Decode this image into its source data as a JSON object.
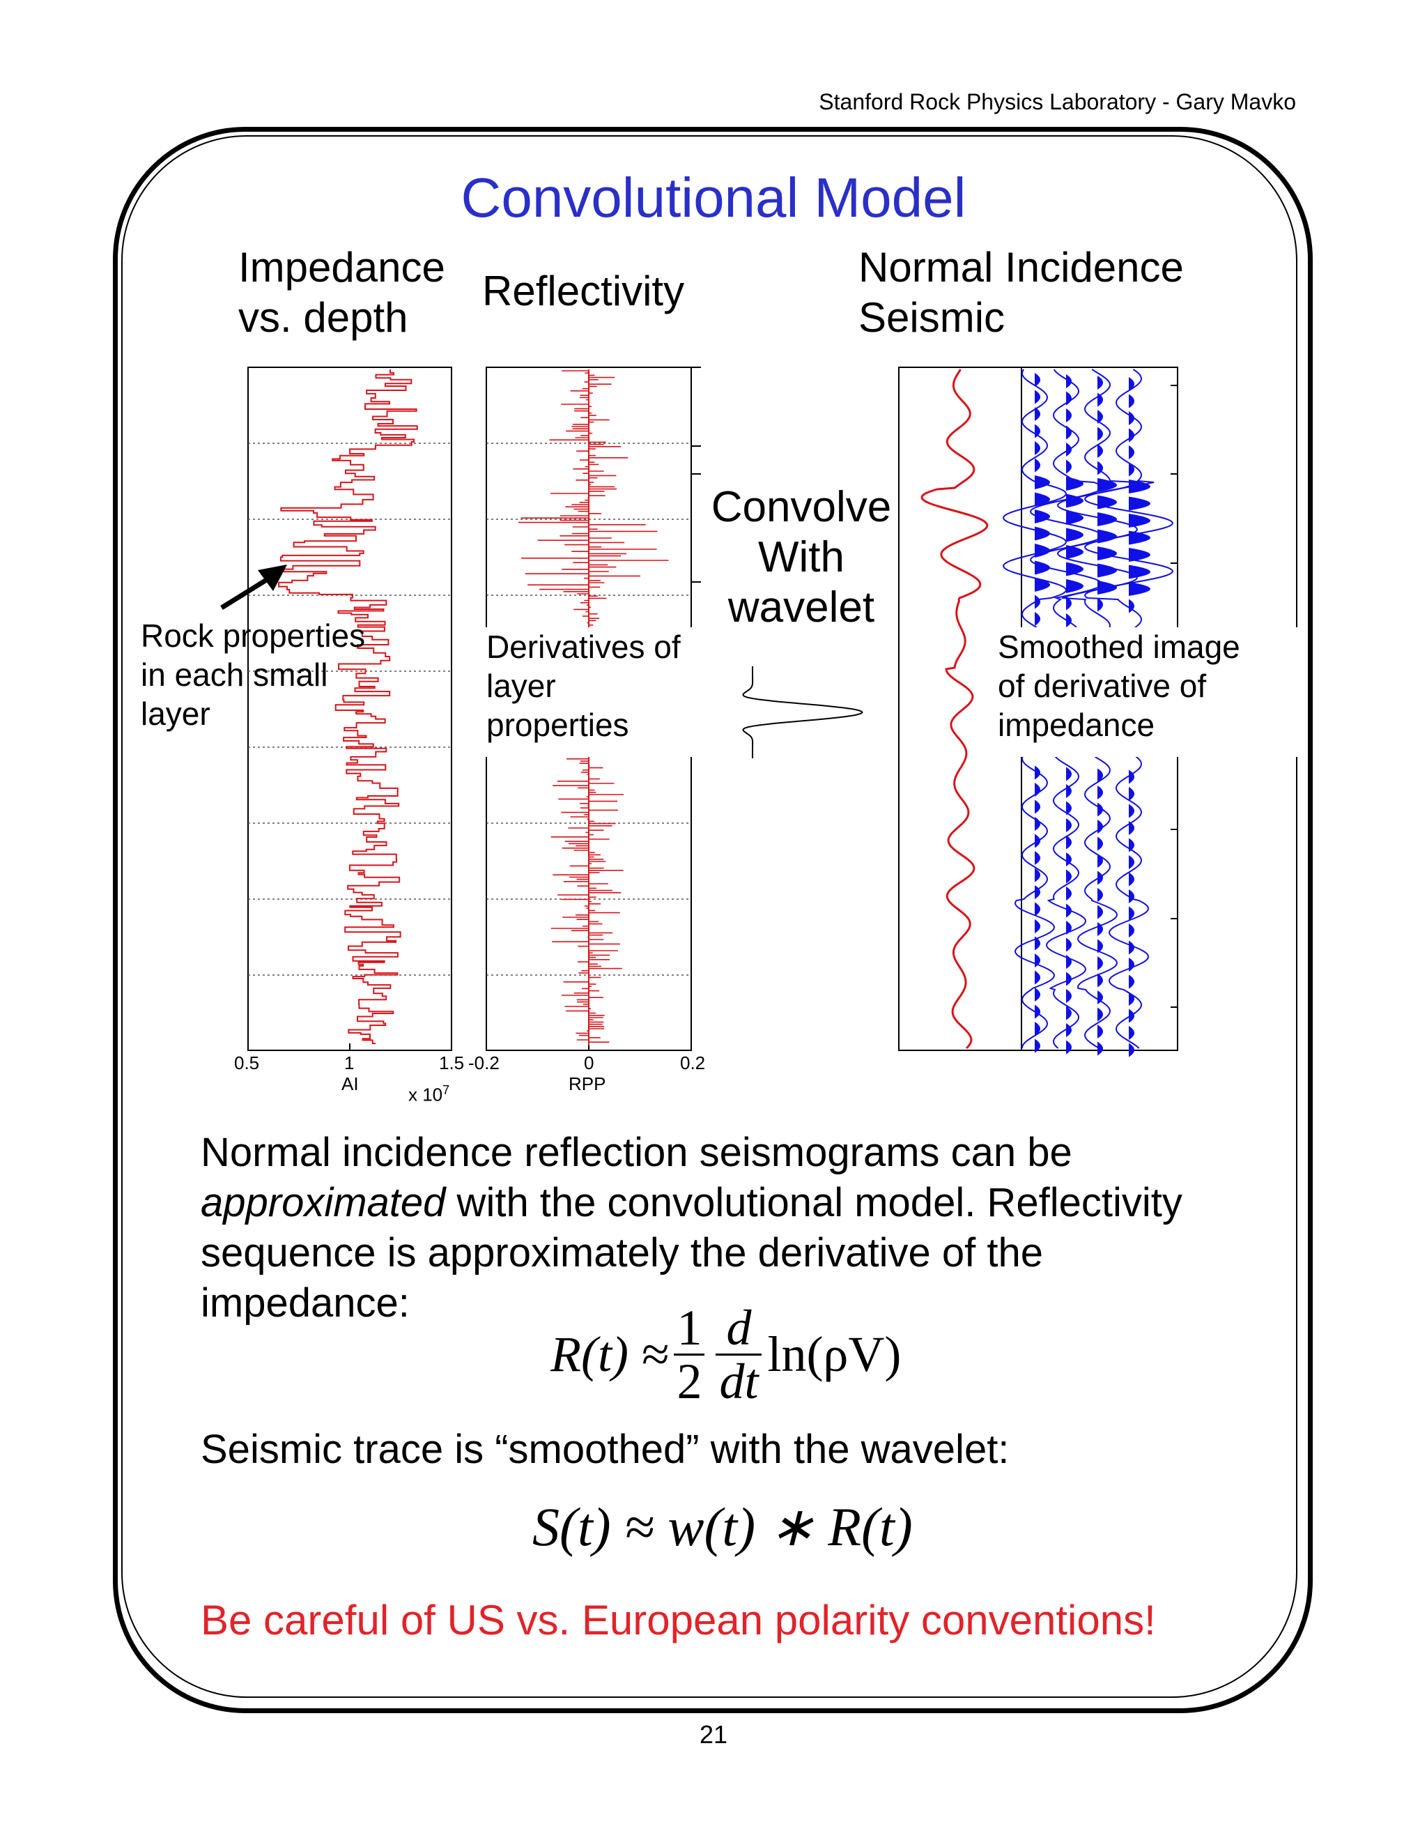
{
  "header": {
    "text": "Stanford Rock Physics Laboratory -  Gary Mavko"
  },
  "title": "Convolutional Model",
  "panels": {
    "impedance": {
      "heading_line1": "Impedance",
      "heading_line2": "vs. depth",
      "xticks": [
        "0.5",
        "1",
        "1.5"
      ],
      "xlabel": "AI",
      "multiplier": "x 10",
      "multiplier_exp": "7"
    },
    "reflectivity": {
      "heading": "Reflectivity",
      "xticks": [
        "-0.2",
        "0",
        "0.2"
      ],
      "xlabel": "RPP"
    },
    "seismic": {
      "heading_line1": "Normal Incidence",
      "heading_line2": "Seismic"
    }
  },
  "annotations": {
    "rock_properties": [
      "Rock properties",
      "in each small",
      "layer"
    ],
    "derivatives": [
      "Derivatives of",
      "layer",
      "properties"
    ],
    "convolve": [
      "Convolve",
      "With",
      "wavelet"
    ],
    "smoothed": [
      "Smoothed image",
      "of derivative of",
      "impedance"
    ]
  },
  "body": {
    "line1": "Normal incidence reflection seismograms can be",
    "line2_italic": "approximated",
    "line2_rest": " with the convolutional model.  Reflectivity",
    "line3": "sequence is approximately the derivative of the",
    "line4": "impedance:",
    "eq1": {
      "lhs": "R(t) ≈",
      "num1": "1",
      "den1": "2",
      "num2": "d",
      "den2": "dt",
      "rhs": "ln(ρV)"
    },
    "line5": "Seismic trace is “smoothed” with the wavelet:",
    "eq2": "S(t) ≈ w(t) ∗ R(t)"
  },
  "warning": "Be careful of US vs. European polarity conventions!",
  "page_number": "21",
  "colors": {
    "title": "#2a2fc8",
    "trace_red": "#d8141a",
    "trace_blue": "#1010e6",
    "warning": "#e0242a"
  }
}
